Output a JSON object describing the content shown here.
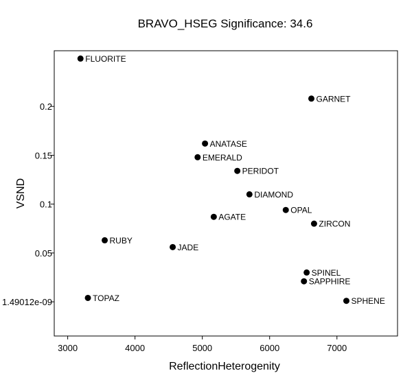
{
  "chart_data": {
    "type": "scatter",
    "title": "BRAVO_HSEG  Significance:  34.6",
    "xlabel": "ReflectionHeterogenity",
    "ylabel": "VSND",
    "xlim": [
      2800,
      7900
    ],
    "ylim": [
      -0.035,
      0.257
    ],
    "x_ticks": [
      3000,
      4000,
      5000,
      6000,
      7000
    ],
    "x_tick_labels": [
      "3000",
      "4000",
      "5000",
      "6000",
      "7000"
    ],
    "y_ticks": [
      1.49012e-09,
      0.05,
      0.1,
      0.15,
      0.2
    ],
    "y_tick_labels": [
      "1.49012e-09",
      "0.05",
      "0.1",
      "0.15",
      "0.2"
    ],
    "grid": false,
    "legend": "none",
    "marker_color": "#000000",
    "points": [
      {
        "label": "FLUORITE",
        "x": 3190,
        "y": 0.249
      },
      {
        "label": "GARNET",
        "x": 6620,
        "y": 0.208
      },
      {
        "label": "ANATASE",
        "x": 5040,
        "y": 0.162
      },
      {
        "label": "EMERALD",
        "x": 4930,
        "y": 0.148
      },
      {
        "label": "PERIDOT",
        "x": 5520,
        "y": 0.134
      },
      {
        "label": "DIAMOND",
        "x": 5700,
        "y": 0.11
      },
      {
        "label": "OPAL",
        "x": 6240,
        "y": 0.094
      },
      {
        "label": "AGATE",
        "x": 5170,
        "y": 0.087
      },
      {
        "label": "ZIRCON",
        "x": 6660,
        "y": 0.08
      },
      {
        "label": "RUBY",
        "x": 3550,
        "y": 0.063
      },
      {
        "label": "JADE",
        "x": 4560,
        "y": 0.056
      },
      {
        "label": "SPINEL",
        "x": 6550,
        "y": 0.03
      },
      {
        "label": "SAPPHIRE",
        "x": 6510,
        "y": 0.021
      },
      {
        "label": "TOPAZ",
        "x": 3300,
        "y": 0.004
      },
      {
        "label": "SPHENE",
        "x": 7140,
        "y": 0.001
      }
    ]
  }
}
